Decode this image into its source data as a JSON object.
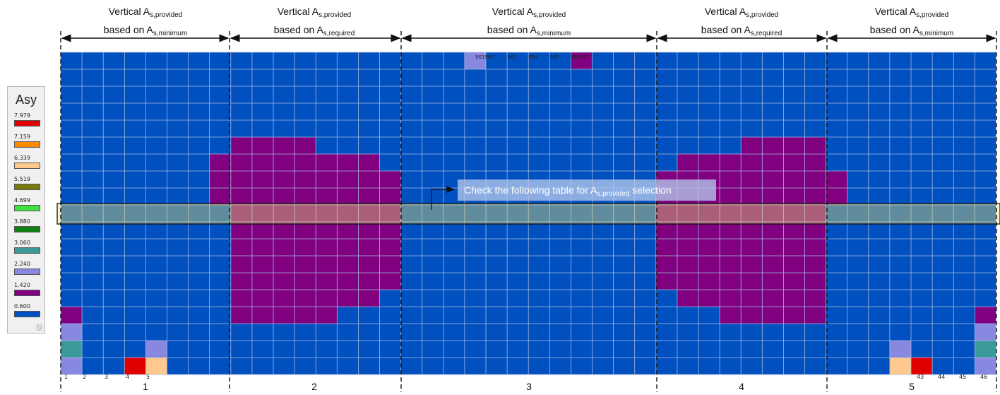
{
  "headers": [
    {
      "line1": "Vertical A",
      "sub1": "s,provided",
      "line2": "based on A",
      "sub2": "s,minimum"
    },
    {
      "line1": "Vertical A",
      "sub1": "s,provided",
      "line2": "based on A",
      "sub2": "s,required"
    },
    {
      "line1": "Vertical A",
      "sub1": "s,provided",
      "line2": "based on A",
      "sub2": "s,minimum"
    },
    {
      "line1": "Vertical A",
      "sub1": "s,provided",
      "line2": "based on A",
      "sub2": "s,required"
    },
    {
      "line1": "Vertical A",
      "sub1": "s,provided",
      "line2": "based on A",
      "sub2": "s,minimum"
    }
  ],
  "segment_labels": [
    "1",
    "2",
    "3",
    "4",
    "5"
  ],
  "legend": {
    "title": "Asy",
    "entries": [
      {
        "value": "7.979",
        "color": "#e00000"
      },
      {
        "value": "7.159",
        "color": "#ff8c00"
      },
      {
        "value": "6.339",
        "color": "#ffc88c"
      },
      {
        "value": "5.519",
        "color": "#7a7a10"
      },
      {
        "value": "4.699",
        "color": "#40e040"
      },
      {
        "value": "3.880",
        "color": "#108010"
      },
      {
        "value": "3.060",
        "color": "#3a9a9a"
      },
      {
        "value": "2.240",
        "color": "#8888e0"
      },
      {
        "value": "1.420",
        "color": "#800080"
      },
      {
        "value": "0.600",
        "color": "#0050c0"
      }
    ]
  },
  "callout": {
    "text": "Check the following table for A",
    "sub": "s,provided",
    "suffix": " selection"
  },
  "bottom_node_labels": [
    "1",
    "2",
    "3",
    "4",
    "5",
    "43",
    "44",
    "45",
    "46"
  ],
  "top_node_labels": [
    "961962",
    "963",
    "964",
    "965",
    "966967"
  ],
  "colors": {
    "base": "#0050c0",
    "purple": "#800080",
    "lavender": "#8888e0",
    "teal": "#3a9a9a",
    "red": "#e00000",
    "peach": "#ffc88c",
    "grid": "#a8b8e0",
    "highlight_fill": "#e8e070",
    "highlight_border": "#111111"
  }
}
